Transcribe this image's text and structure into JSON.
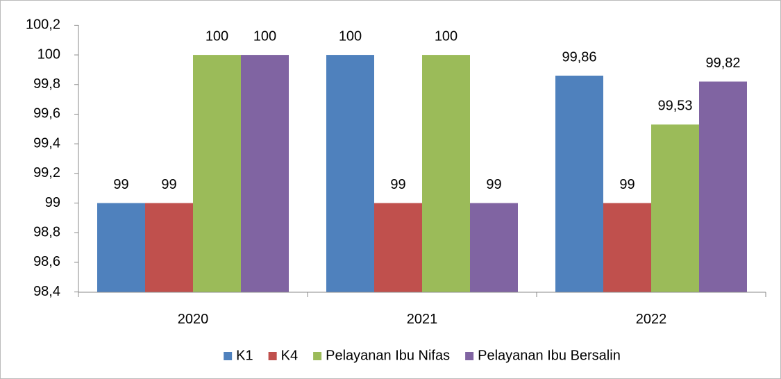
{
  "chart_data": {
    "type": "bar",
    "categories": [
      "2020",
      "2021",
      "2022"
    ],
    "series": [
      {
        "name": "K1",
        "color": "#4f81bd",
        "values": [
          99,
          100,
          99.86
        ],
        "value_labels": [
          "99",
          "100",
          "99,86"
        ]
      },
      {
        "name": "K4",
        "color": "#c0504d",
        "values": [
          99,
          99,
          99
        ],
        "value_labels": [
          "99",
          "99",
          "99"
        ]
      },
      {
        "name": "Pelayanan Ibu Nifas",
        "color": "#9bbb59",
        "values": [
          100,
          100,
          99.53
        ],
        "value_labels": [
          "100",
          "100",
          "99,53"
        ]
      },
      {
        "name": "Pelayanan Ibu Bersalin",
        "color": "#8064a2",
        "values": [
          100,
          99,
          99.82
        ],
        "value_labels": [
          "100",
          "99",
          "99,82"
        ]
      }
    ],
    "ylim": [
      98.4,
      100.2
    ],
    "yticks": [
      {
        "value": 98.4,
        "label": "98,4"
      },
      {
        "value": 98.6,
        "label": "98,6"
      },
      {
        "value": 98.8,
        "label": "98,8"
      },
      99,
      {
        "value": 99.2,
        "label": "99,2"
      },
      {
        "value": 99.4,
        "label": "99,4"
      },
      {
        "value": 99.6,
        "label": "99,6"
      },
      {
        "value": 99.8,
        "label": "99,8"
      },
      100,
      {
        "value": 100.2,
        "label": "100,2"
      }
    ],
    "grid": false,
    "legend": "bottom"
  }
}
